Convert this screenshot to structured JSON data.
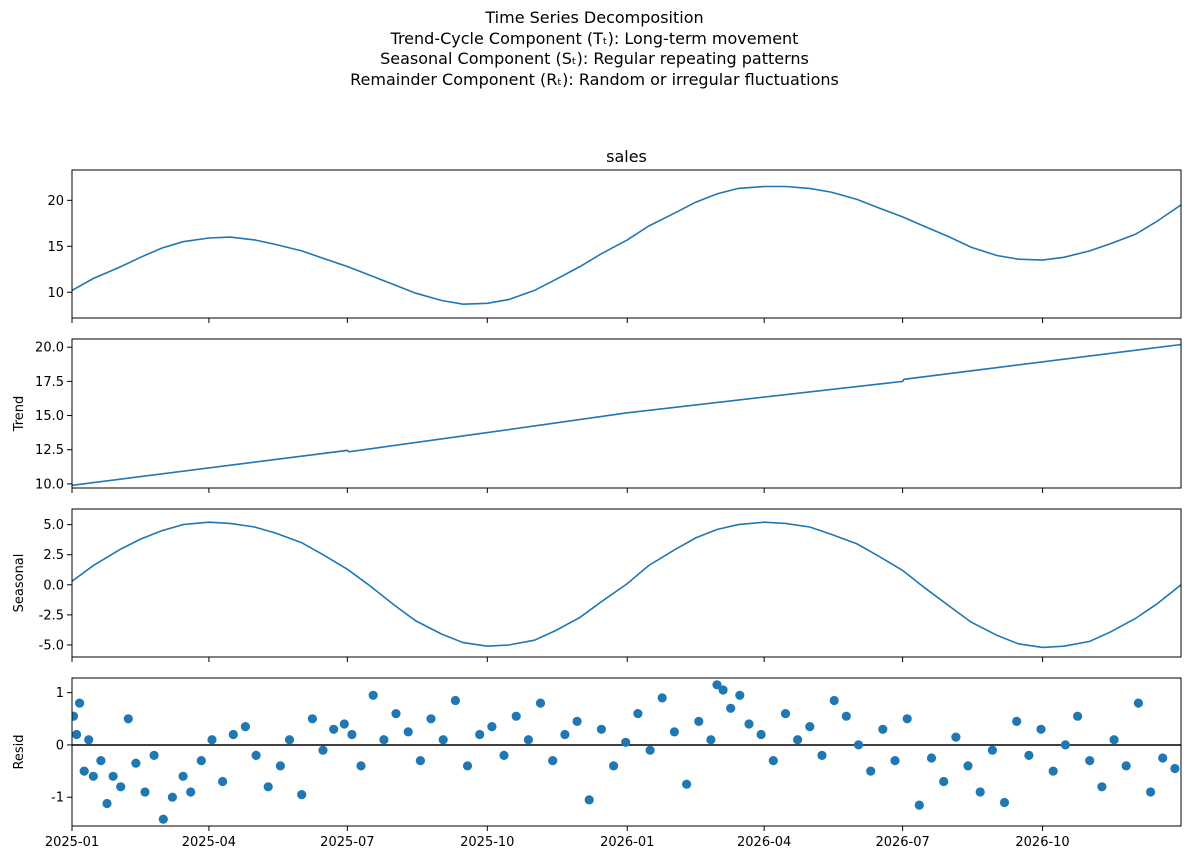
{
  "figure": {
    "title_lines": [
      "Time Series Decomposition",
      "Trend-Cycle Component (Tₜ): Long-term movement",
      "Seasonal Component (Sₜ): Regular repeating patterns",
      "Remainder Component (Rₜ): Random or irregular fluctuations"
    ]
  },
  "chart_data": [
    {
      "type": "line",
      "title": "sales",
      "ylabel": "",
      "x_range": [
        "2025-01-01",
        "2026-12-31"
      ],
      "ylim": [
        7.2,
        23.3
      ],
      "yticks": [
        10,
        15,
        20
      ],
      "color": "#1f77b4",
      "series": [
        {
          "x": [
            "2025-01-01",
            "2025-01-15",
            "2025-02-01",
            "2025-02-15",
            "2025-03-01",
            "2025-03-15",
            "2025-04-01",
            "2025-04-15",
            "2025-05-01",
            "2025-05-15",
            "2025-06-01",
            "2025-06-15",
            "2025-07-01",
            "2025-07-15",
            "2025-08-01",
            "2025-08-15",
            "2025-09-01",
            "2025-09-15",
            "2025-10-01",
            "2025-10-15",
            "2025-11-01",
            "2025-11-15",
            "2025-12-01",
            "2025-12-15",
            "2026-01-01",
            "2026-01-15",
            "2026-02-01",
            "2026-02-15",
            "2026-03-01",
            "2026-03-15",
            "2026-04-01",
            "2026-04-15",
            "2026-05-01",
            "2026-05-15",
            "2026-06-01",
            "2026-06-15",
            "2026-07-01",
            "2026-07-15",
            "2026-08-01",
            "2026-08-15",
            "2026-09-01",
            "2026-09-15",
            "2026-10-01",
            "2026-10-15",
            "2026-11-01",
            "2026-11-15",
            "2026-12-01",
            "2026-12-15",
            "2026-12-31"
          ],
          "values": [
            10.2,
            11.5,
            12.7,
            13.8,
            14.8,
            15.5,
            15.9,
            16.0,
            15.7,
            15.2,
            14.5,
            13.7,
            12.8,
            11.9,
            10.8,
            9.9,
            9.1,
            8.7,
            8.8,
            9.2,
            10.2,
            11.4,
            12.8,
            14.2,
            15.7,
            17.2,
            18.6,
            19.8,
            20.7,
            21.3,
            21.5,
            21.5,
            21.3,
            20.9,
            20.1,
            19.2,
            18.2,
            17.2,
            16.0,
            14.9,
            14.0,
            13.6,
            13.5,
            13.8,
            14.5,
            15.3,
            16.3,
            17.7,
            19.5
          ]
        }
      ]
    },
    {
      "type": "line",
      "title": "",
      "ylabel": "Trend",
      "x_range": [
        "2025-01-01",
        "2026-12-31"
      ],
      "ylim": [
        9.7,
        20.6
      ],
      "yticks": [
        10.0,
        12.5,
        15.0,
        17.5,
        20.0
      ],
      "color": "#1f77b4",
      "series": [
        {
          "x": [
            "2025-01-01",
            "2025-07-01",
            "2025-07-02",
            "2025-10-01",
            "2026-01-01",
            "2026-04-01",
            "2026-07-01",
            "2026-07-02",
            "2026-12-31"
          ],
          "values": [
            9.9,
            12.45,
            12.35,
            13.75,
            15.2,
            16.35,
            17.5,
            17.65,
            20.2
          ]
        }
      ]
    },
    {
      "type": "line",
      "title": "",
      "ylabel": "Seasonal",
      "x_range": [
        "2025-01-01",
        "2026-12-31"
      ],
      "ylim": [
        -6.0,
        6.3
      ],
      "yticks": [
        -5.0,
        -2.5,
        0.0,
        2.5,
        5.0
      ],
      "color": "#1f77b4",
      "series": [
        {
          "x": [
            "2025-01-01",
            "2025-01-15",
            "2025-02-01",
            "2025-02-15",
            "2025-03-01",
            "2025-03-15",
            "2025-04-01",
            "2025-04-15",
            "2025-05-01",
            "2025-05-15",
            "2025-06-01",
            "2025-06-15",
            "2025-07-01",
            "2025-07-15",
            "2025-08-01",
            "2025-08-15",
            "2025-09-01",
            "2025-09-15",
            "2025-10-01",
            "2025-10-15",
            "2025-11-01",
            "2025-11-15",
            "2025-12-01",
            "2025-12-15",
            "2026-01-01",
            "2026-01-15",
            "2026-02-01",
            "2026-02-15",
            "2026-03-01",
            "2026-03-15",
            "2026-04-01",
            "2026-04-15",
            "2026-05-01",
            "2026-05-15",
            "2026-06-01",
            "2026-06-15",
            "2026-07-01",
            "2026-07-15",
            "2026-08-01",
            "2026-08-15",
            "2026-09-01",
            "2026-09-15",
            "2026-10-01",
            "2026-10-15",
            "2026-11-01",
            "2026-11-15",
            "2026-12-01",
            "2026-12-15",
            "2026-12-31"
          ],
          "values": [
            0.3,
            1.6,
            2.9,
            3.8,
            4.5,
            5.0,
            5.2,
            5.1,
            4.8,
            4.3,
            3.5,
            2.5,
            1.3,
            0.0,
            -1.7,
            -3.0,
            -4.1,
            -4.8,
            -5.1,
            -5.0,
            -4.6,
            -3.8,
            -2.7,
            -1.4,
            0.1,
            1.6,
            2.9,
            3.9,
            4.6,
            5.0,
            5.2,
            5.1,
            4.8,
            4.2,
            3.4,
            2.4,
            1.2,
            -0.2,
            -1.8,
            -3.1,
            -4.2,
            -4.9,
            -5.2,
            -5.1,
            -4.7,
            -3.9,
            -2.8,
            -1.6,
            0.0
          ]
        }
      ]
    },
    {
      "type": "scatter",
      "title": "",
      "ylabel": "Resid",
      "x_range": [
        "2025-01-01",
        "2026-12-31"
      ],
      "ylim": [
        -1.55,
        1.28
      ],
      "yticks": [
        -1,
        0,
        1
      ],
      "baseline": 0,
      "color": "#1f77b4",
      "points": {
        "x": [
          "2025-01-02",
          "2025-01-04",
          "2025-01-06",
          "2025-01-09",
          "2025-01-12",
          "2025-01-15",
          "2025-01-20",
          "2025-01-24",
          "2025-01-28",
          "2025-02-02",
          "2025-02-07",
          "2025-02-12",
          "2025-02-18",
          "2025-02-24",
          "2025-03-02",
          "2025-03-08",
          "2025-03-15",
          "2025-03-20",
          "2025-03-27",
          "2025-04-03",
          "2025-04-10",
          "2025-04-17",
          "2025-04-25",
          "2025-05-02",
          "2025-05-10",
          "2025-05-18",
          "2025-05-24",
          "2025-06-01",
          "2025-06-08",
          "2025-06-15",
          "2025-06-22",
          "2025-06-29",
          "2025-07-04",
          "2025-07-10",
          "2025-07-18",
          "2025-07-25",
          "2025-08-02",
          "2025-08-10",
          "2025-08-18",
          "2025-08-25",
          "2025-09-02",
          "2025-09-10",
          "2025-09-18",
          "2025-09-26",
          "2025-10-04",
          "2025-10-12",
          "2025-10-20",
          "2025-10-28",
          "2025-11-05",
          "2025-11-13",
          "2025-11-21",
          "2025-11-29",
          "2025-12-07",
          "2025-12-15",
          "2025-12-23",
          "2025-12-31",
          "2026-01-08",
          "2026-01-16",
          "2026-01-24",
          "2026-02-01",
          "2026-02-09",
          "2026-02-17",
          "2026-02-25",
          "2026-03-01",
          "2026-03-05",
          "2026-03-10",
          "2026-03-16",
          "2026-03-22",
          "2026-03-30",
          "2026-04-07",
          "2026-04-15",
          "2026-04-23",
          "2026-05-01",
          "2026-05-09",
          "2026-05-17",
          "2026-05-25",
          "2026-06-02",
          "2026-06-10",
          "2026-06-18",
          "2026-06-26",
          "2026-07-04",
          "2026-07-12",
          "2026-07-20",
          "2026-07-28",
          "2026-08-05",
          "2026-08-13",
          "2026-08-21",
          "2026-08-29",
          "2026-09-06",
          "2026-09-14",
          "2026-09-22",
          "2026-09-30",
          "2026-10-08",
          "2026-10-16",
          "2026-10-24",
          "2026-11-01",
          "2026-11-09",
          "2026-11-17",
          "2026-11-25",
          "2026-12-03",
          "2026-12-11",
          "2026-12-19",
          "2026-12-27"
        ],
        "values": [
          0.55,
          0.2,
          0.8,
          -0.5,
          0.1,
          -0.6,
          -0.3,
          -1.12,
          -0.6,
          -0.8,
          0.5,
          -0.35,
          -0.9,
          -0.2,
          -1.42,
          -1.0,
          -0.6,
          -0.9,
          -0.3,
          0.1,
          -0.7,
          0.2,
          0.35,
          -0.2,
          -0.8,
          -0.4,
          0.1,
          -0.95,
          0.5,
          -0.1,
          0.3,
          0.4,
          0.2,
          -0.4,
          0.95,
          0.1,
          0.6,
          0.25,
          -0.3,
          0.5,
          0.1,
          0.85,
          -0.4,
          0.2,
          0.35,
          -0.2,
          0.55,
          0.1,
          0.8,
          -0.3,
          0.2,
          0.45,
          -1.05,
          0.3,
          -0.4,
          0.05,
          0.6,
          -0.1,
          0.9,
          0.25,
          -0.75,
          0.45,
          0.1,
          1.15,
          1.05,
          0.7,
          0.95,
          0.4,
          0.2,
          -0.3,
          0.6,
          0.1,
          0.35,
          -0.2,
          0.85,
          0.55,
          0.0,
          -0.5,
          0.3,
          -0.3,
          0.5,
          -1.15,
          -0.25,
          -0.7,
          0.15,
          -0.4,
          -0.9,
          -0.1,
          -1.1,
          0.45,
          -0.2,
          0.3,
          -0.5,
          0.0,
          0.55,
          -0.3,
          -0.8,
          0.1,
          -0.4,
          0.8,
          -0.9,
          -0.25,
          -0.45
        ]
      }
    }
  ],
  "x_tick_labels": [
    "2025-01",
    "2025-04",
    "2025-07",
    "2025-10",
    "2026-01",
    "2026-04",
    "2026-07",
    "2026-10"
  ],
  "x_tick_dates": [
    "2025-01-01",
    "2025-04-01",
    "2025-07-01",
    "2025-10-01",
    "2026-01-01",
    "2026-04-01",
    "2026-07-01",
    "2026-10-01"
  ]
}
